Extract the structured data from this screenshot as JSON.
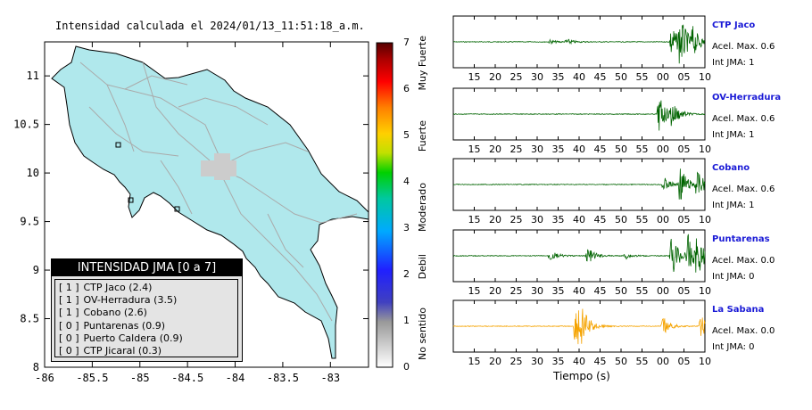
{
  "map": {
    "title": "Intensidad calculada el 2024/01/13_11:51:18_a.m.",
    "x_ticks": [
      "-86",
      "-85.5",
      "-85",
      "-84.5",
      "-84",
      "-83.5",
      "-83"
    ],
    "y_ticks": [
      "11",
      "10.5",
      "10",
      "9.5",
      "9",
      "8.5",
      "8"
    ]
  },
  "legend": {
    "title": "INTENSIDAD JMA [0 a 7]",
    "entries": [
      {
        "level": "[ 1 ]",
        "label": "CTP Jaco (2.4)"
      },
      {
        "level": "[ 1 ]",
        "label": "OV-Herradura (3.5)"
      },
      {
        "level": "[ 1 ]",
        "label": "Cobano (2.6)"
      },
      {
        "level": "[ 0 ]",
        "label": "Puntarenas (0.9)"
      },
      {
        "level": "[ 0 ]",
        "label": "Puerto Caldera (0.9)"
      },
      {
        "level": "[ 0 ]",
        "label": "CTP Jicaral (0.3)"
      }
    ]
  },
  "scale": {
    "labels": [
      "0",
      "1",
      "2",
      "3",
      "4",
      "5",
      "6",
      "7"
    ],
    "categories": [
      "No sentido",
      "Debil",
      "Moderado",
      "Fuerte",
      "Muy Fuerte"
    ]
  },
  "waveforms": {
    "x_ticks_top": [
      "15",
      "20",
      "25",
      "30",
      "35",
      "40",
      "45",
      "50",
      "55",
      "00",
      "05",
      "10"
    ],
    "x_ticks": [
      "15",
      "20",
      "25",
      "30",
      "35",
      "40",
      "45",
      "50",
      "55",
      "00",
      "05",
      "10"
    ],
    "xlabel": "Tiempo (s)",
    "stations": [
      {
        "name": "CTP Jaco",
        "acc": "Acel. Max. 0.6",
        "int": "Int JMA: 1",
        "color": "#006400"
      },
      {
        "name": "OV-Herradura",
        "acc": "Acel. Max. 0.6",
        "int": "Int JMA: 1",
        "color": "#006400"
      },
      {
        "name": "Cobano",
        "acc": "Acel. Max. 0.6",
        "int": "Int JMA: 1",
        "color": "#006400"
      },
      {
        "name": "Puntarenas",
        "acc": "Acel. Max. 0.0",
        "int": "Int JMA: 0",
        "color": "#006400"
      },
      {
        "name": "La Sabana",
        "acc": "Acel. Max. 0.0",
        "int": "Int JMA: 0",
        "color": "#f5a300"
      }
    ]
  },
  "chart_data": [
    {
      "type": "scatter",
      "title": "Intensidad calculada el 2024/01/13_11:51:18_a.m.",
      "xlabel": "",
      "ylabel": "",
      "xlim": [
        -86,
        -82.6
      ],
      "ylim": [
        8,
        11.35
      ],
      "x_ticks": [
        -86,
        -85.5,
        -85,
        -84.5,
        -84,
        -83.5,
        -83
      ],
      "y_ticks": [
        8,
        8.5,
        9,
        9.5,
        10,
        10.5,
        11
      ],
      "legend_title": "INTENSIDAD JMA [0 a 7]",
      "legend_position": "bottom-left",
      "series": [
        {
          "name": "CTP Jaco (2.4)",
          "intensity_class": 1
        },
        {
          "name": "OV-Herradura (3.5)",
          "intensity_class": 1
        },
        {
          "name": "Cobano (2.6)",
          "intensity_class": 1
        },
        {
          "name": "Puntarenas (0.9)",
          "intensity_class": 0
        },
        {
          "name": "Puerto Caldera (0.9)",
          "intensity_class": 0
        },
        {
          "name": "CTP Jicaral (0.3)",
          "intensity_class": 0
        }
      ],
      "colorbar": {
        "range": [
          0,
          7
        ],
        "ticks": [
          0,
          1,
          2,
          3,
          4,
          5,
          6,
          7
        ],
        "categories": [
          "No sentido",
          "Debil",
          "Moderado",
          "Fuerte",
          "Muy Fuerte"
        ]
      },
      "grid": false
    },
    {
      "type": "line",
      "xlabel": "Tiempo (s)",
      "x_tick_labels": [
        "15",
        "20",
        "25",
        "30",
        "35",
        "40",
        "45",
        "50",
        "55",
        "00",
        "05",
        "10"
      ],
      "xlim": [
        10,
        70
      ],
      "series": [
        {
          "name": "CTP Jaco",
          "max_acc": 0.6,
          "jma": 1,
          "events": [
            {
              "t": 33,
              "amp": 0.08
            },
            {
              "t": 37,
              "amp": 0.12
            },
            {
              "t": 62,
              "amp": 0.75
            },
            {
              "t": 64,
              "amp": 1.0
            },
            {
              "t": 67,
              "amp": 0.55
            }
          ]
        },
        {
          "name": "OV-Herradura",
          "max_acc": 0.6,
          "jma": 1,
          "events": [
            {
              "t": 59,
              "amp": 0.8
            },
            {
              "t": 62,
              "amp": 0.55
            }
          ]
        },
        {
          "name": "Cobano",
          "max_acc": 0.6,
          "jma": 1,
          "events": [
            {
              "t": 60,
              "amp": 0.35
            },
            {
              "t": 64,
              "amp": 0.8
            },
            {
              "t": 68,
              "amp": 0.6
            }
          ]
        },
        {
          "name": "Puntarenas",
          "max_acc": 0.0,
          "jma": 0,
          "events": [
            {
              "t": 33,
              "amp": 0.25
            },
            {
              "t": 42,
              "amp": 0.35
            },
            {
              "t": 51,
              "amp": 0.15
            },
            {
              "t": 62,
              "amp": 1.0
            },
            {
              "t": 66,
              "amp": 0.85
            },
            {
              "t": 68,
              "amp": 0.8
            }
          ]
        },
        {
          "name": "La Sabana",
          "max_acc": 0.0,
          "jma": 0,
          "events": [
            {
              "t": 39,
              "amp": 0.8
            },
            {
              "t": 40,
              "amp": 1.0
            },
            {
              "t": 60,
              "amp": 0.4
            },
            {
              "t": 69,
              "amp": 0.5
            }
          ]
        }
      ]
    }
  ]
}
